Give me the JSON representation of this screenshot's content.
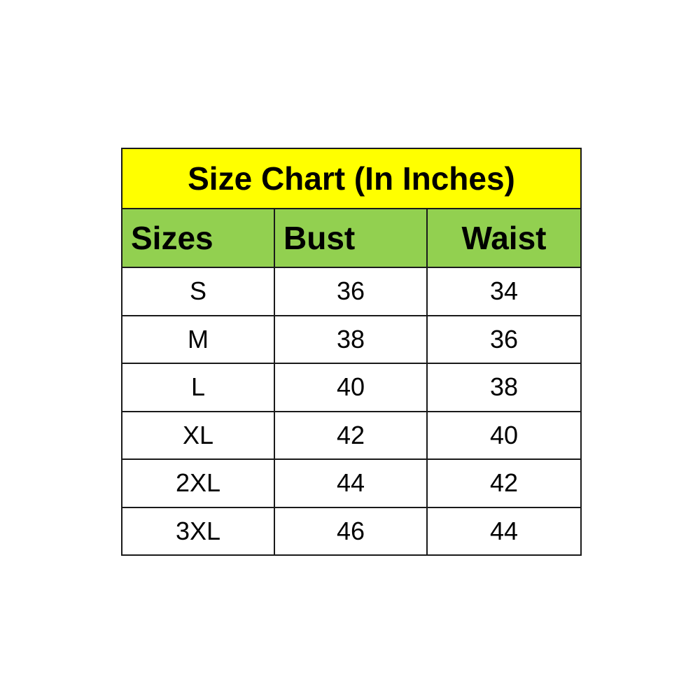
{
  "colors": {
    "title_bg": "#FFFF00",
    "header_bg": "#92D050",
    "cell_bg": "#FFFFFF",
    "border": "#1A1A1A"
  },
  "title": "Size Chart (In Inches)",
  "columns": [
    "Sizes",
    "Bust",
    "Waist"
  ],
  "rows": [
    [
      "S",
      "36",
      "34"
    ],
    [
      "M",
      "38",
      "36"
    ],
    [
      "L",
      "40",
      "38"
    ],
    [
      "XL",
      "42",
      "40"
    ],
    [
      "2XL",
      "44",
      "42"
    ],
    [
      "3XL",
      "46",
      "44"
    ]
  ]
}
